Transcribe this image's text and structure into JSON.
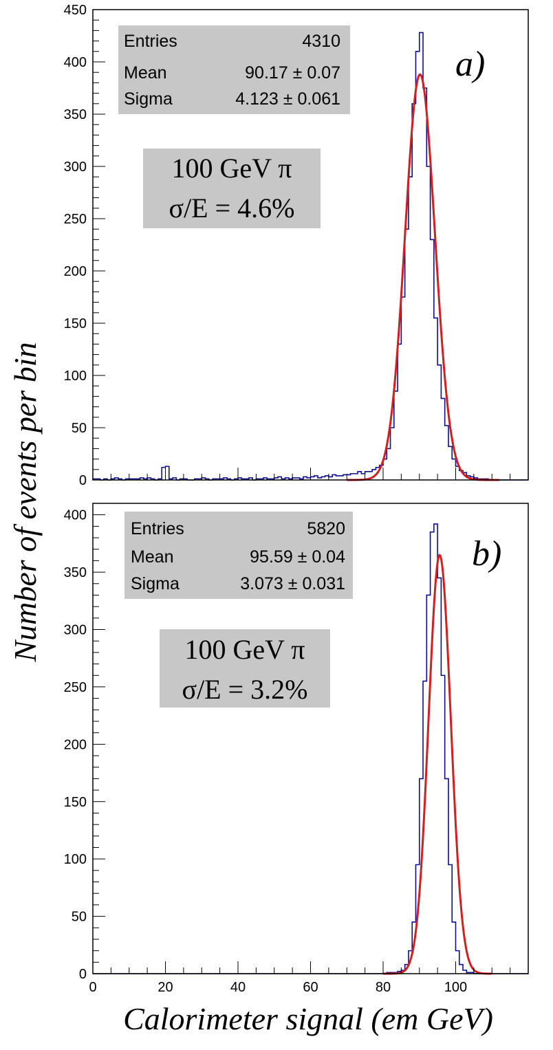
{
  "colors": {
    "histogram": "#0b0f8f",
    "fit": "#d41e1e",
    "box": "#c7c7c7",
    "axis": "#000000"
  },
  "chart_data": {
    "ylabel": "Number of events per bin",
    "xlabel": "Calorimeter signal (em GeV)",
    "panels": [
      {
        "label": "a)",
        "type": "histogram",
        "xlim": [
          0,
          120
        ],
        "ylim": [
          0,
          450
        ],
        "yticks": [
          "0",
          "50",
          "100",
          "150",
          "200",
          "250",
          "300",
          "350",
          "400",
          "450"
        ],
        "xticks": [],
        "stats": {
          "entries_label": "Entries",
          "entries": "4310",
          "mean_label": "Mean",
          "mean": "90.17 ± 0.07",
          "sigma_label": "Sigma",
          "sigma": "4.123 ± 0.061"
        },
        "energy": "100 GeV π",
        "resolution": "σ/E = 4.6%",
        "bin_width": 1,
        "hist": [
          1,
          1,
          0,
          1,
          0,
          1,
          2,
          1,
          0,
          1,
          1,
          1,
          1,
          2,
          1,
          2,
          1,
          0,
          1,
          12,
          13,
          1,
          2,
          0,
          1,
          1,
          0,
          0,
          1,
          1,
          2,
          1,
          0,
          1,
          1,
          1,
          2,
          1,
          0,
          1,
          2,
          1,
          1,
          2,
          0,
          1,
          1,
          2,
          1,
          1,
          2,
          3,
          1,
          2,
          1,
          2,
          2,
          1,
          3,
          2,
          3,
          4,
          2,
          3,
          4,
          3,
          5,
          4,
          4,
          5,
          5,
          6,
          6,
          8,
          6,
          8,
          8,
          10,
          12,
          14,
          20,
          30,
          50,
          85,
          130,
          175,
          240,
          290,
          360,
          410,
          428,
          375,
          300,
          230,
          155,
          110,
          78,
          52,
          32,
          20,
          13,
          9,
          7,
          4,
          3,
          2,
          1,
          1,
          1,
          0,
          0,
          0,
          0,
          0,
          0,
          0,
          0,
          0,
          0,
          0
        ],
        "fit": {
          "mean": 90.17,
          "sigma": 4.123,
          "peak": 388,
          "xmin": 70,
          "xmax": 112
        }
      },
      {
        "label": "b)",
        "type": "histogram",
        "xlim": [
          0,
          120
        ],
        "ylim": [
          0,
          410
        ],
        "yticks": [
          "0",
          "50",
          "100",
          "150",
          "200",
          "250",
          "300",
          "350",
          "400"
        ],
        "xticks": [
          "0",
          "20",
          "40",
          "60",
          "80",
          "100"
        ],
        "stats": {
          "entries_label": "Entries",
          "entries": "5820",
          "mean_label": "Mean",
          "mean": "95.59 ± 0.04",
          "sigma_label": "Sigma",
          "sigma": "3.073 ± 0.031"
        },
        "energy": "100 GeV π",
        "resolution": "σ/E = 3.2%",
        "bin_width": 1,
        "hist": [
          0,
          0,
          0,
          0,
          0,
          0,
          0,
          0,
          0,
          0,
          0,
          0,
          0,
          0,
          0,
          0,
          0,
          0,
          0,
          0,
          0,
          0,
          0,
          0,
          0,
          0,
          0,
          0,
          0,
          0,
          0,
          0,
          0,
          0,
          0,
          0,
          0,
          0,
          0,
          0,
          0,
          0,
          0,
          0,
          0,
          0,
          0,
          0,
          0,
          0,
          0,
          0,
          0,
          0,
          0,
          0,
          0,
          0,
          0,
          0,
          0,
          0,
          0,
          0,
          0,
          0,
          0,
          0,
          0,
          0,
          0,
          0,
          0,
          0,
          0,
          0,
          0,
          0,
          0,
          0,
          0,
          1,
          1,
          1,
          2,
          3,
          8,
          20,
          45,
          95,
          170,
          255,
          330,
          385,
          392,
          345,
          260,
          170,
          95,
          45,
          20,
          8,
          3,
          1,
          1,
          0,
          0,
          0,
          0,
          0,
          0,
          0,
          0,
          0,
          0,
          0,
          0,
          0,
          0,
          0
        ],
        "fit": {
          "mean": 95.59,
          "sigma": 3.073,
          "peak": 365,
          "xmin": 80,
          "xmax": 110
        }
      }
    ]
  }
}
